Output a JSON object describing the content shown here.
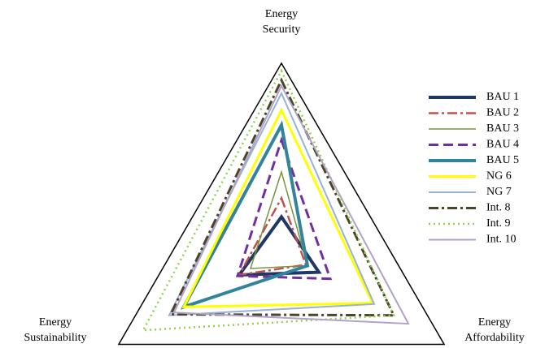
{
  "chart_data": {
    "type": "radar",
    "categories": [
      [
        "Energy",
        "Security"
      ],
      [
        "Energy",
        "Affordability"
      ],
      [
        "Energy",
        "Sustainability"
      ]
    ],
    "rlim": [
      0,
      1
    ],
    "series": [
      {
        "name": "BAU 1",
        "color": "#1f3864",
        "line_style": "solid",
        "line_width": 4,
        "values": [
          0.18,
          0.23,
          0.26
        ]
      },
      {
        "name": "BAU 2",
        "color": "#c0504d",
        "line_style": "dashdot",
        "line_width": 2.5,
        "values": [
          0.28,
          0.15,
          0.26
        ]
      },
      {
        "name": "BAU 3",
        "color": "#77933c",
        "line_style": "solid",
        "line_width": 1.5,
        "values": [
          0.42,
          0.16,
          0.19
        ]
      },
      {
        "name": "BAU 4",
        "color": "#7030a0",
        "line_style": "dashed",
        "line_width": 3,
        "values": [
          0.59,
          0.3,
          0.27
        ]
      },
      {
        "name": "BAU 5",
        "color": "#31849b",
        "line_style": "solid",
        "line_width": 4,
        "values": [
          0.67,
          0.16,
          0.6
        ]
      },
      {
        "name": "NG 6",
        "color": "#ffff00",
        "line_style": "solid",
        "line_width": 3,
        "values": [
          0.75,
          0.56,
          0.6
        ]
      },
      {
        "name": "NG 7",
        "color": "#95b3d7",
        "line_style": "solid",
        "line_width": 2,
        "values": [
          0.84,
          0.57,
          0.69
        ]
      },
      {
        "name": "Int. 8",
        "color": "#4a452a",
        "line_style": "dashdot",
        "line_width": 3,
        "values": [
          0.91,
          0.69,
          0.68
        ]
      },
      {
        "name": "Int. 9",
        "color": "#92d050",
        "line_style": "dotted",
        "line_width": 2.5,
        "values": [
          0.96,
          0.69,
          0.85
        ]
      },
      {
        "name": "Int. 10",
        "color": "#b2a1c7",
        "line_style": "solid",
        "line_width": 2,
        "values": [
          0.88,
          0.78,
          0.66
        ]
      }
    ]
  }
}
